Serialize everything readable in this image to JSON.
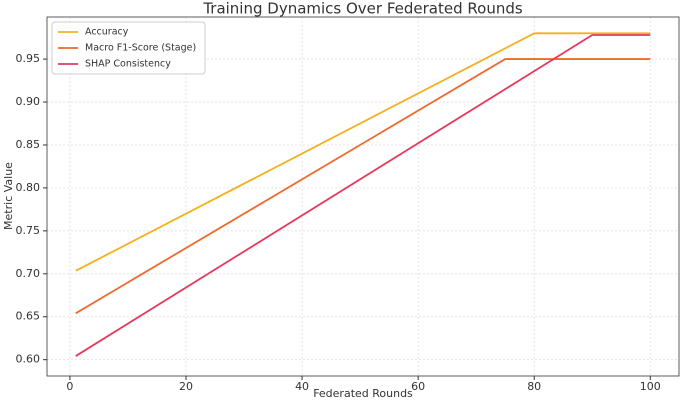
{
  "chart_data": {
    "type": "line",
    "title": "Training Dynamics Over Federated Rounds",
    "xlabel": "Federated Rounds",
    "ylabel": "Metric Value",
    "series": [
      {
        "name": "Accuracy",
        "color": "#f5b01e",
        "x": [
          1,
          80,
          100
        ],
        "values": [
          0.7035,
          0.98,
          0.98
        ]
      },
      {
        "name": "Macro F1-Score (Stage)",
        "color": "#ee6a2f",
        "x": [
          1,
          75,
          100
        ],
        "values": [
          0.654,
          0.95,
          0.95
        ]
      },
      {
        "name": "SHAP Consistency",
        "color": "#e6395c",
        "x": [
          1,
          90,
          100
        ],
        "values": [
          0.6042,
          0.978,
          0.978
        ]
      }
    ],
    "xlim": [
      -3.95,
      104.95
    ],
    "xticks": [
      0,
      20,
      40,
      60,
      80,
      100
    ],
    "ylim": [
      0.581,
      0.999
    ],
    "yticks": [
      {
        "value": 0.6,
        "label": "0.60"
      },
      0.65,
      {
        "value": 0.7,
        "label": "0.70"
      },
      0.75,
      {
        "value": 0.8,
        "label": "0.80"
      },
      0.85,
      {
        "value": 0.9,
        "label": "0.90"
      },
      0.95
    ],
    "grid": true,
    "legend": "upper left"
  }
}
